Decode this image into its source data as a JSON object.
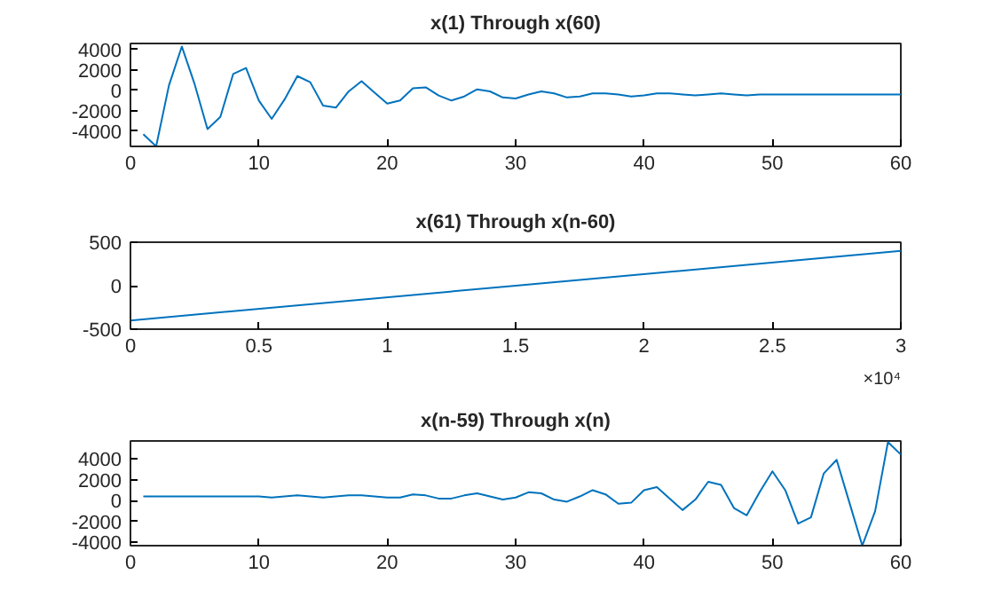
{
  "chart_data": [
    {
      "type": "line",
      "title": "x(1) Through x(60)",
      "x": [
        1,
        2,
        3,
        4,
        5,
        6,
        7,
        8,
        9,
        10,
        11,
        12,
        13,
        14,
        15,
        16,
        17,
        18,
        19,
        20,
        21,
        22,
        23,
        24,
        25,
        26,
        27,
        28,
        29,
        30,
        31,
        32,
        33,
        34,
        35,
        36,
        37,
        38,
        39,
        40,
        41,
        42,
        43,
        44,
        45,
        46,
        47,
        48,
        49,
        50,
        51,
        52,
        53,
        54,
        55,
        56,
        57,
        58,
        59,
        60
      ],
      "series": [
        {
          "color": "#0072bd",
          "values": [
            -4300,
            -5500,
            500,
            4300,
            600,
            -3800,
            -2600,
            1600,
            2200,
            -1000,
            -2800,
            -900,
            1400,
            800,
            -1500,
            -1700,
            -100,
            900,
            -200,
            -1300,
            -1000,
            200,
            300,
            -500,
            -1000,
            -600,
            100,
            -100,
            -700,
            -800,
            -400,
            -100,
            -300,
            -700,
            -600,
            -300,
            -300,
            -400,
            -600,
            -500,
            -300,
            -300,
            -400,
            -500,
            -400,
            -300,
            -400,
            -500,
            -400,
            -400,
            -400,
            -400,
            -400,
            -400,
            -400,
            -400,
            -400,
            -400,
            -400,
            -400
          ]
        }
      ],
      "xlim": [
        0,
        60
      ],
      "xticks": [
        0,
        10,
        20,
        30,
        40,
        50,
        60
      ],
      "ylim": [
        -5500,
        4600
      ],
      "yticks": [
        -4000,
        -2000,
        0,
        2000,
        4000
      ],
      "grid": false
    },
    {
      "type": "line",
      "title": "x(61) Through x(n-60)",
      "x": [
        0,
        1.5,
        3
      ],
      "series": [
        {
          "color": "#0072bd",
          "values": [
            -400,
            0,
            400
          ]
        }
      ],
      "xlim": [
        0,
        3
      ],
      "xticks": [
        0,
        0.5,
        1,
        1.5,
        2,
        2.5,
        3
      ],
      "ylim": [
        -500,
        500
      ],
      "yticks": [
        -500,
        0,
        500
      ],
      "annotations": [
        "×10⁴"
      ],
      "grid": false
    },
    {
      "type": "line",
      "title": "x(n-59) Through x(n)",
      "x": [
        1,
        2,
        3,
        4,
        5,
        6,
        7,
        8,
        9,
        10,
        11,
        12,
        13,
        14,
        15,
        16,
        17,
        18,
        19,
        20,
        21,
        22,
        23,
        24,
        25,
        26,
        27,
        28,
        29,
        30,
        31,
        32,
        33,
        34,
        35,
        36,
        37,
        38,
        39,
        40,
        41,
        42,
        43,
        44,
        45,
        46,
        47,
        48,
        49,
        50,
        51,
        52,
        53,
        54,
        55,
        56,
        57,
        58,
        59,
        60
      ],
      "series": [
        {
          "color": "#0072bd",
          "values": [
            400,
            400,
            400,
            400,
            400,
            400,
            400,
            400,
            400,
            400,
            300,
            400,
            500,
            400,
            300,
            400,
            500,
            500,
            400,
            300,
            300,
            600,
            500,
            200,
            200,
            500,
            700,
            400,
            100,
            300,
            800,
            700,
            100,
            -100,
            400,
            1000,
            600,
            -300,
            -200,
            1000,
            1300,
            200,
            -900,
            100,
            1800,
            1500,
            -700,
            -1400,
            800,
            2800,
            1000,
            -2200,
            -1600,
            2600,
            3900,
            -200,
            -4300,
            -1000,
            5600,
            4400
          ]
        }
      ],
      "xlim": [
        0,
        60
      ],
      "xticks": [
        0,
        10,
        20,
        30,
        40,
        50,
        60
      ],
      "ylim": [
        -4300,
        5700
      ],
      "yticks": [
        -4000,
        -2000,
        0,
        2000,
        4000
      ],
      "grid": false
    }
  ]
}
